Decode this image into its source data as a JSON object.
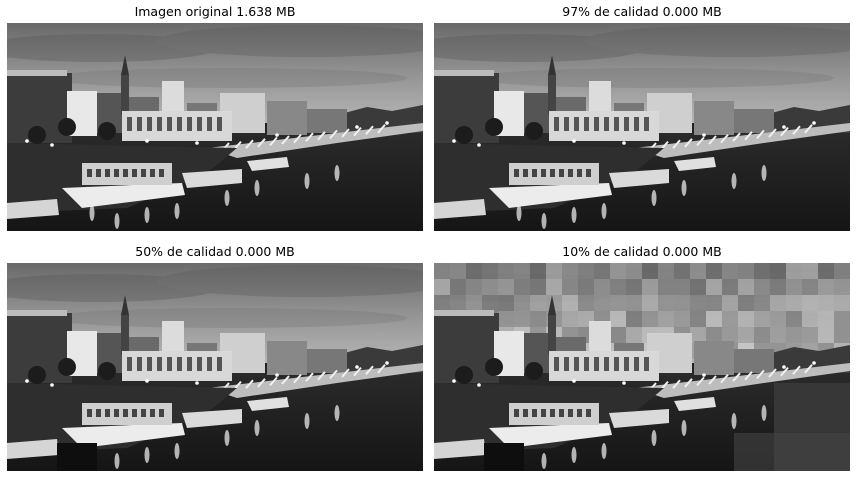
{
  "panels": [
    {
      "title": "Imagen original 1.638 MB",
      "quality": 1.0
    },
    {
      "title": "97% de calidad 0.000 MB",
      "quality": 0.97
    },
    {
      "title": "50% de calidad 0.000 MB",
      "quality": 0.5
    },
    {
      "title": "10% de calidad 0.000 MB",
      "quality": 0.1
    }
  ]
}
